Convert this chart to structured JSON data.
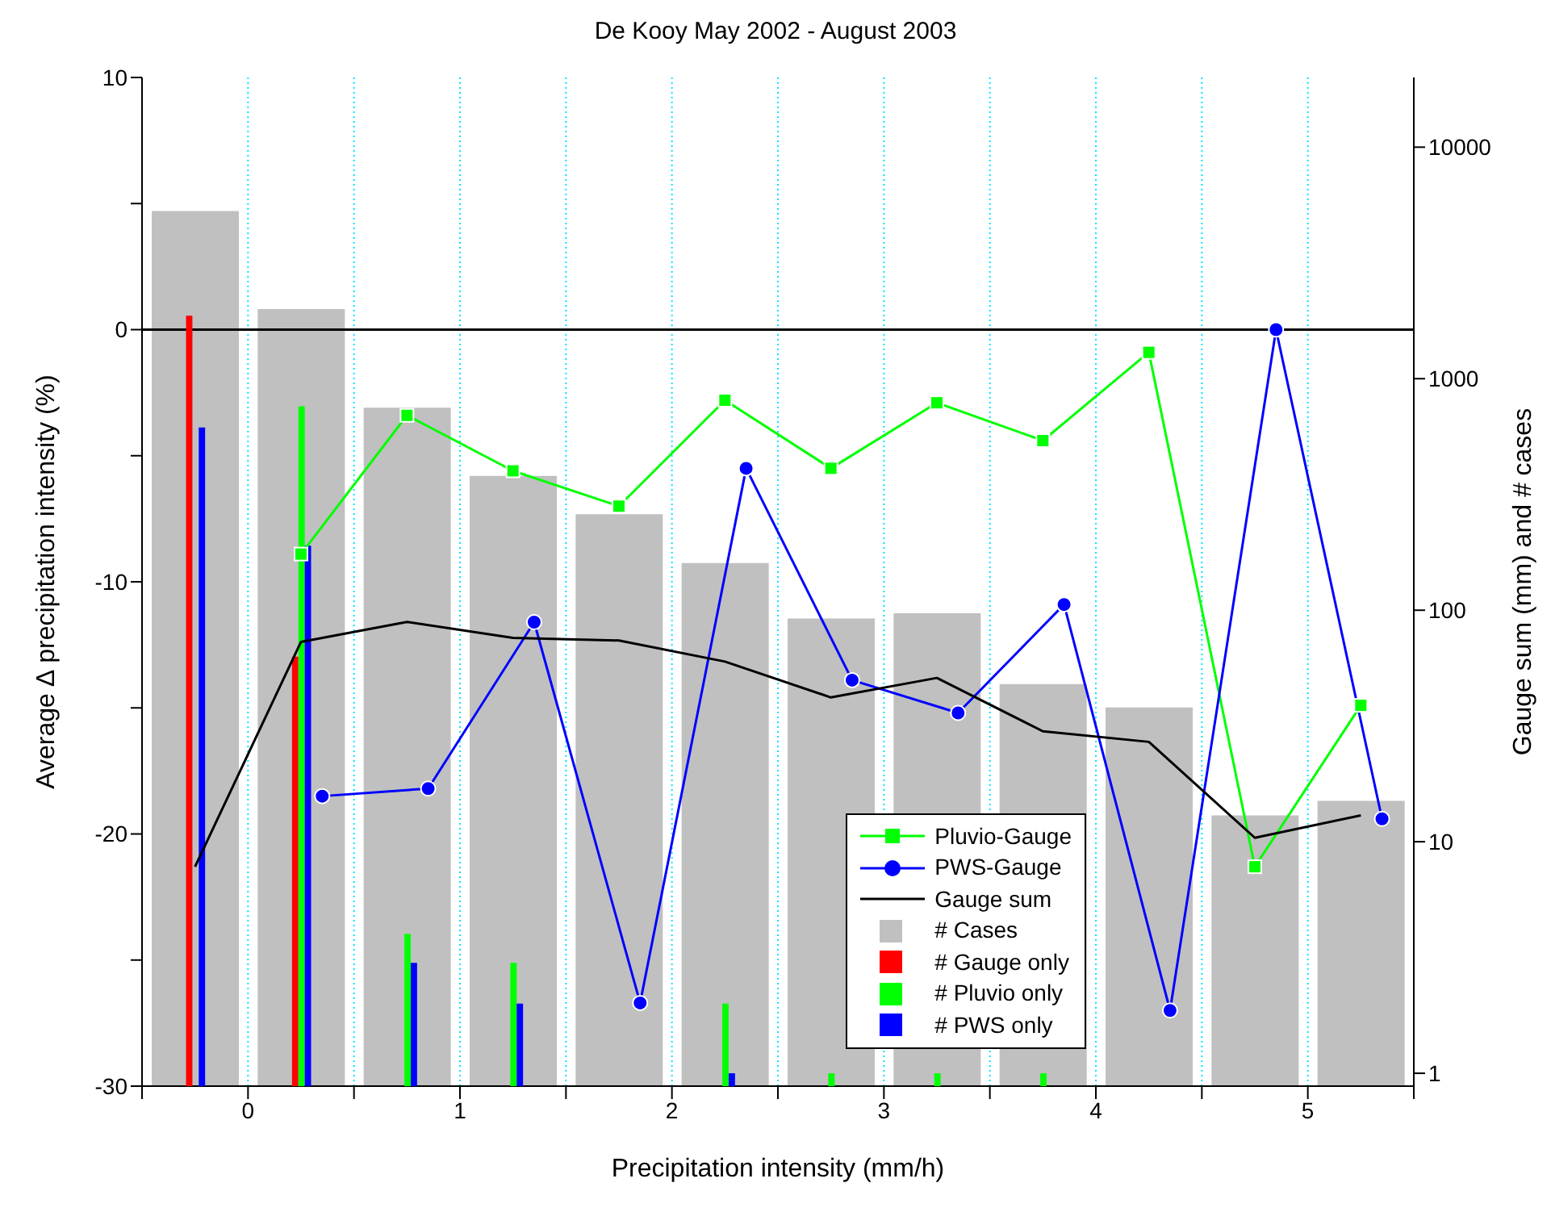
{
  "chart_data": {
    "type": "bar",
    "title": "De Kooy May 2002 - August 2003",
    "xlabel": "Precipitation intensity (mm/h)",
    "ylabel": "Average ∆ precipitation intensity (%)",
    "y2label": "Gauge sum (mm) and # cases",
    "xlim": [
      -0.5,
      5.5
    ],
    "xticks": [
      {
        "value": -0.5,
        "label": null
      },
      0,
      {
        "value": 0.5,
        "label": null
      },
      1,
      {
        "value": 1.5,
        "label": null
      },
      2,
      {
        "value": 2.5,
        "label": null
      },
      3,
      {
        "value": 3.5,
        "label": null
      },
      4,
      {
        "value": 4.5,
        "label": null
      },
      5,
      {
        "value": 5.5,
        "label": null
      }
    ],
    "ylim": [
      -30,
      10
    ],
    "yticks": [
      -30,
      {
        "value": -25,
        "label": null
      },
      -20,
      {
        "value": -15,
        "label": null
      },
      -10,
      {
        "value": -5,
        "label": null
      },
      0,
      {
        "value": 5,
        "label": null
      },
      10
    ],
    "y2lim": [
      0.88,
      20000
    ],
    "y2ticks": [
      1,
      10,
      100,
      1000,
      10000
    ],
    "log": "y2",
    "grid": "x",
    "legend": "bottom right",
    "ref_lines": [
      {
        "axis": "y",
        "value": 0,
        "color": "#000000"
      }
    ],
    "series": [
      {
        "name": "# Cases",
        "type": "bar",
        "axis": "y2",
        "color": "#c0c0c0",
        "x": [
          -0.25,
          0.25,
          0.75,
          1.25,
          1.75,
          2.25,
          2.75,
          3.25,
          3.75,
          4.25,
          4.75,
          5.25
        ],
        "values": [
          5300,
          2000,
          750,
          380,
          260,
          160,
          92,
          97,
          48,
          38,
          13,
          15
        ]
      },
      {
        "name": "# Gauge only",
        "type": "bar",
        "axis": "y2",
        "color": "#ff0000",
        "x": [
          -0.25,
          0.25
        ],
        "values": [
          1870,
          63
        ]
      },
      {
        "name": "# Pluvio only",
        "type": "bar",
        "axis": "y2",
        "color": "#00ff00",
        "x": [
          0.25,
          0.75,
          1.25,
          2.25,
          2.75,
          3.25,
          3.75
        ],
        "values": [
          760,
          4,
          3,
          2,
          1,
          1,
          1
        ]
      },
      {
        "name": "# PWS only",
        "type": "bar",
        "axis": "y2",
        "color": "#0000ff",
        "x": [
          -0.25,
          0.25,
          0.75,
          1.25,
          2.25
        ],
        "values": [
          615,
          190,
          3,
          2,
          1
        ]
      },
      {
        "name": "Pluvio-Gauge",
        "type": "line",
        "axis": "y",
        "color": "#00ff00",
        "marker": "square",
        "x": [
          0.25,
          0.75,
          1.25,
          1.75,
          2.25,
          2.75,
          3.25,
          3.75,
          4.25,
          4.75,
          5.25
        ],
        "values": [
          -8.9,
          -3.4,
          -5.6,
          -7.0,
          -2.8,
          -5.5,
          -2.9,
          -4.4,
          -0.9,
          -21.3,
          -14.9
        ]
      },
      {
        "name": "PWS-Gauge",
        "type": "line",
        "axis": "y",
        "color": "#0000ff",
        "marker": "circle",
        "x": [
          0.35,
          0.85,
          1.35,
          1.85,
          2.35,
          2.85,
          3.35,
          3.85,
          4.35,
          4.85,
          5.35
        ],
        "values": [
          -18.5,
          -18.2,
          -11.6,
          -26.7,
          -5.5,
          -13.9,
          -15.2,
          -10.9,
          -27.0,
          0.0,
          -19.4
        ]
      },
      {
        "name": "Gauge sum",
        "type": "line",
        "axis": "y2",
        "color": "#000000",
        "marker": "none",
        "x": [
          -0.25,
          0.25,
          0.75,
          1.25,
          1.75,
          2.25,
          2.75,
          3.25,
          3.75,
          4.25,
          4.75,
          5.25
        ],
        "values": [
          7.8,
          73,
          89,
          76,
          74,
          60,
          42,
          51,
          30,
          27,
          10.4,
          13
        ]
      }
    ]
  }
}
